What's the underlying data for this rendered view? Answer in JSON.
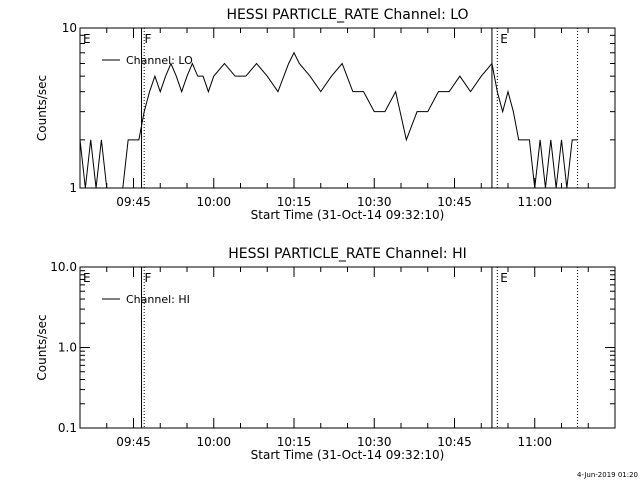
{
  "footer": {
    "timestamp": "4-Jun-2019 01:20"
  },
  "chart_data": [
    {
      "type": "line",
      "title": "HESSI PARTICLE_RATE Channel: LO",
      "xlabel": "Start Time (31-Oct-14 09:32:10)",
      "ylabel": "Counts/sec",
      "y_scale": "log",
      "ylim": [
        1,
        10
      ],
      "y_tick_labels": [
        {
          "value": 1,
          "label": "1"
        },
        {
          "value": 10,
          "label": "10"
        }
      ],
      "xlim": [
        "09:35",
        "11:15"
      ],
      "x_tick_labels": [
        "09:45",
        "10:00",
        "10:15",
        "10:30",
        "10:45",
        "11:00"
      ],
      "legend": {
        "position": "top-left",
        "entries": [
          "Channel: LO"
        ]
      },
      "markers": [
        {
          "time": "09:35",
          "label": "E",
          "style": "none"
        },
        {
          "time": "09:46.5",
          "label": "F",
          "style": "solid"
        },
        {
          "time": "09:47",
          "label": "",
          "style": "dotted"
        },
        {
          "time": "10:52",
          "label": "",
          "style": "solid"
        },
        {
          "time": "10:53",
          "label": "E",
          "style": "dotted"
        },
        {
          "time": "11:08",
          "label": "",
          "style": "dotted"
        }
      ],
      "series": [
        {
          "name": "Channel: LO",
          "x": [
            "09:35",
            "09:36",
            "09:37",
            "09:38",
            "09:39",
            "09:40",
            "09:41",
            "09:42",
            "09:43",
            "09:44",
            "09:45",
            "09:46",
            "09:47",
            "09:48",
            "09:49",
            "09:50",
            "09:51",
            "09:52",
            "09:53",
            "09:54",
            "09:55",
            "09:56",
            "09:57",
            "09:58",
            "09:59",
            "10:00",
            "10:02",
            "10:04",
            "10:06",
            "10:08",
            "10:10",
            "10:12",
            "10:14",
            "10:15",
            "10:16",
            "10:18",
            "10:20",
            "10:22",
            "10:24",
            "10:26",
            "10:28",
            "10:30",
            "10:32",
            "10:34",
            "10:36",
            "10:38",
            "10:40",
            "10:42",
            "10:44",
            "10:46",
            "10:48",
            "10:50",
            "10:52",
            "10:53",
            "10:54",
            "10:55",
            "10:56",
            "10:57",
            "10:58",
            "10:59",
            "11:00",
            "11:01",
            "11:02",
            "11:03",
            "11:04",
            "11:05",
            "11:06",
            "11:07",
            "11:08"
          ],
          "values": [
            2,
            1,
            2,
            1,
            2,
            1,
            1,
            1,
            1,
            2,
            2,
            2,
            3,
            4,
            5,
            4,
            5,
            6,
            5,
            4,
            5,
            6,
            5,
            5,
            4,
            5,
            6,
            5,
            5,
            6,
            5,
            4,
            6,
            7,
            6,
            5,
            4,
            5,
            6,
            4,
            4,
            3,
            3,
            4,
            2,
            3,
            3,
            4,
            4,
            5,
            4,
            5,
            6,
            4,
            3,
            4,
            3,
            2,
            2,
            2,
            1,
            2,
            1,
            2,
            1,
            2,
            1,
            2,
            2
          ]
        }
      ]
    },
    {
      "type": "line",
      "title": "HESSI PARTICLE_RATE Channel: HI",
      "xlabel": "Start Time (31-Oct-14 09:32:10)",
      "ylabel": "Counts/sec",
      "y_scale": "log",
      "ylim": [
        0.1,
        10
      ],
      "y_tick_labels": [
        {
          "value": 0.1,
          "label": "0.1"
        },
        {
          "value": 1,
          "label": "1.0"
        },
        {
          "value": 10,
          "label": "10.0"
        }
      ],
      "xlim": [
        "09:35",
        "11:15"
      ],
      "x_tick_labels": [
        "09:45",
        "10:00",
        "10:15",
        "10:30",
        "10:45",
        "11:00"
      ],
      "legend": {
        "position": "top-left",
        "entries": [
          "Channel: HI"
        ]
      },
      "markers": [
        {
          "time": "09:35",
          "label": "E",
          "style": "none"
        },
        {
          "time": "09:46.5",
          "label": "F",
          "style": "solid"
        },
        {
          "time": "09:47",
          "label": "",
          "style": "dotted"
        },
        {
          "time": "10:52",
          "label": "",
          "style": "solid"
        },
        {
          "time": "10:53",
          "label": "E",
          "style": "dotted"
        },
        {
          "time": "11:08",
          "label": "",
          "style": "dotted"
        }
      ],
      "series": [
        {
          "name": "Channel: HI",
          "x": [],
          "values": []
        }
      ]
    }
  ]
}
